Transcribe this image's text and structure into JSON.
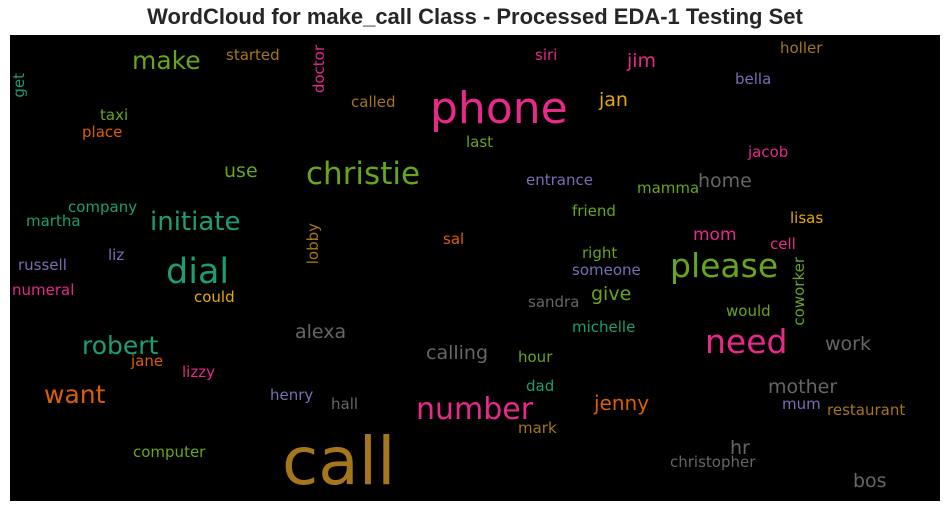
{
  "chart_data": {
    "type": "wordcloud",
    "title": "WordCloud for make_call Class - Processed EDA-1 Testing Set",
    "palette": [
      "#1b9e77",
      "#d95f02",
      "#7570b3",
      "#e7298a",
      "#66a61e",
      "#e6ab02",
      "#a6761d",
      "#666666"
    ],
    "words": [
      {
        "text": "call",
        "color": "#a6761d"
      },
      {
        "text": "phone",
        "color": "#e7298a"
      },
      {
        "text": "christie",
        "color": "#66a61e"
      },
      {
        "text": "dial",
        "color": "#1b9e77"
      },
      {
        "text": "please",
        "color": "#66a61e"
      },
      {
        "text": "need",
        "color": "#e7298a"
      },
      {
        "text": "number",
        "color": "#e7298a"
      },
      {
        "text": "initiate",
        "color": "#1b9e77"
      },
      {
        "text": "robert",
        "color": "#1b9e77"
      },
      {
        "text": "want",
        "color": "#d95f02"
      },
      {
        "text": "make",
        "color": "#66a61e"
      },
      {
        "text": "alexa",
        "color": "#666666"
      },
      {
        "text": "calling",
        "color": "#666666"
      },
      {
        "text": "mother",
        "color": "#666666"
      },
      {
        "text": "jenny",
        "color": "#d95f02"
      },
      {
        "text": "home",
        "color": "#666666"
      },
      {
        "text": "work",
        "color": "#666666"
      },
      {
        "text": "hr",
        "color": "#666666"
      },
      {
        "text": "bos",
        "color": "#666666"
      },
      {
        "text": "jan",
        "color": "#e6ab02"
      },
      {
        "text": "jim",
        "color": "#e7298a"
      },
      {
        "text": "give",
        "color": "#66a61e"
      },
      {
        "text": "use",
        "color": "#66a61e"
      },
      {
        "text": "mom",
        "color": "#e7298a"
      },
      {
        "text": "christopher",
        "color": "#666666"
      },
      {
        "text": "restaurant",
        "color": "#a6761d"
      },
      {
        "text": "entrance",
        "color": "#7570b3"
      },
      {
        "text": "mamma",
        "color": "#66a61e"
      },
      {
        "text": "friend",
        "color": "#66a61e"
      },
      {
        "text": "someone",
        "color": "#7570b3"
      },
      {
        "text": "right",
        "color": "#66a61e"
      },
      {
        "text": "sandra",
        "color": "#666666"
      },
      {
        "text": "michelle",
        "color": "#1b9e77"
      },
      {
        "text": "hour",
        "color": "#66a61e"
      },
      {
        "text": "dad",
        "color": "#1b9e77"
      },
      {
        "text": "mark",
        "color": "#a6761d"
      },
      {
        "text": "siri",
        "color": "#e7298a"
      },
      {
        "text": "started",
        "color": "#a6761d"
      },
      {
        "text": "called",
        "color": "#a6761d"
      },
      {
        "text": "last",
        "color": "#66a61e"
      },
      {
        "text": "doctor",
        "color": "#e7298a"
      },
      {
        "text": "holler",
        "color": "#a6761d"
      },
      {
        "text": "bella",
        "color": "#7570b3"
      },
      {
        "text": "jacob",
        "color": "#e7298a"
      },
      {
        "text": "lisas",
        "color": "#e6ab02"
      },
      {
        "text": "cell",
        "color": "#e7298a"
      },
      {
        "text": "coworker",
        "color": "#66a61e"
      },
      {
        "text": "would",
        "color": "#66a61e"
      },
      {
        "text": "mum",
        "color": "#7570b3"
      },
      {
        "text": "sal",
        "color": "#d95f02"
      },
      {
        "text": "lobby",
        "color": "#a6761d"
      },
      {
        "text": "henry",
        "color": "#7570b3"
      },
      {
        "text": "hall",
        "color": "#666666"
      },
      {
        "text": "lizzy",
        "color": "#e7298a"
      },
      {
        "text": "jane",
        "color": "#d95f02"
      },
      {
        "text": "computer",
        "color": "#66a61e"
      },
      {
        "text": "could",
        "color": "#e6ab02"
      },
      {
        "text": "liz",
        "color": "#7570b3"
      },
      {
        "text": "numeral",
        "color": "#e7298a"
      },
      {
        "text": "russell",
        "color": "#7570b3"
      },
      {
        "text": "martha",
        "color": "#1b9e77"
      },
      {
        "text": "company",
        "color": "#1b9e77"
      },
      {
        "text": "taxi",
        "color": "#66a61e"
      },
      {
        "text": "place",
        "color": "#d95f02"
      },
      {
        "text": "get",
        "color": "#1b9e77"
      }
    ]
  }
}
